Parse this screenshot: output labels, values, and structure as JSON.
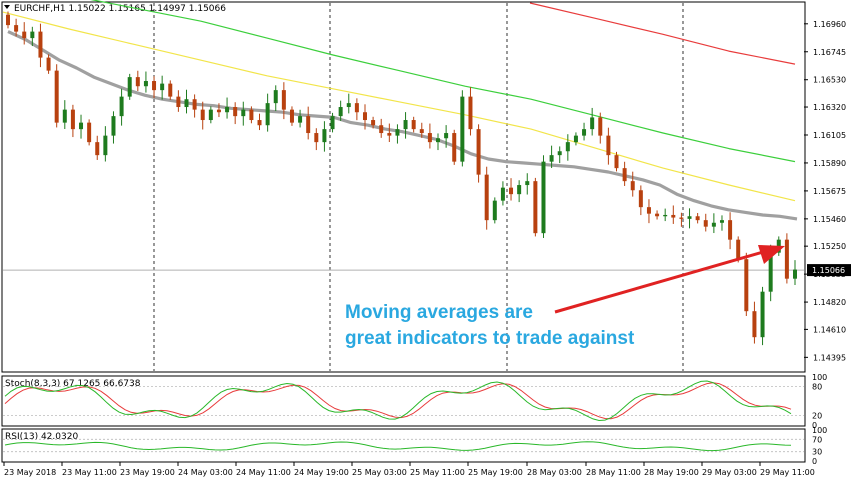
{
  "chart_data": [
    {
      "type": "candlestick",
      "title": "EURCHF,H1  1.15022 1.15165 1.14997 1.15066",
      "ylim": [
        1.1429,
        1.1712
      ],
      "y_ticks": [
        "1.16960",
        "1.16745",
        "1.16530",
        "1.16320",
        "1.16105",
        "1.15890",
        "1.15675",
        "1.15460",
        "1.15250",
        "1.15035",
        "1.14820",
        "1.14610",
        "1.14395"
      ],
      "y_tick_values": [
        1.1696,
        1.16745,
        1.1653,
        1.1632,
        1.16105,
        1.1589,
        1.15675,
        1.1546,
        1.1525,
        1.15035,
        1.1482,
        1.1461,
        1.14395
      ],
      "current_price": "1.15066",
      "current_value": 1.15066,
      "x_labels": [
        "23 May 2018",
        "23 May 11:00",
        "23 May 19:00",
        "24 May 03:00",
        "24 May 11:00",
        "24 May 19:00",
        "25 May 03:00",
        "25 May 11:00",
        "25 May 19:00",
        "28 May 03:00",
        "28 May 11:00",
        "28 May 19:00",
        "29 May 03:00",
        "29 May 11:00"
      ],
      "closes": [
        1.1695,
        1.169,
        1.1685,
        1.169,
        1.167,
        1.166,
        1.162,
        1.163,
        1.1615,
        1.162,
        1.1605,
        1.1595,
        1.161,
        1.1625,
        1.164,
        1.1655,
        1.1648,
        1.1652,
        1.1645,
        1.165,
        1.164,
        1.1632,
        1.1638,
        1.163,
        1.1622,
        1.163,
        1.1628,
        1.1632,
        1.1625,
        1.163,
        1.1622,
        1.1618,
        1.1635,
        1.1645,
        1.163,
        1.162,
        1.1625,
        1.1612,
        1.1605,
        1.1615,
        1.1625,
        1.1632,
        1.1635,
        1.1628,
        1.1622,
        1.1618,
        1.1612,
        1.161,
        1.1615,
        1.1622,
        1.1615,
        1.1612,
        1.1605,
        1.1608,
        1.1612,
        1.159,
        1.164,
        1.1615,
        1.158,
        1.1545,
        1.156,
        1.157,
        1.1565,
        1.1572,
        1.1575,
        1.1535,
        1.159,
        1.1595,
        1.1598,
        1.1605,
        1.161,
        1.1615,
        1.1624,
        1.161,
        1.1595,
        1.1585,
        1.1575,
        1.1568,
        1.1555,
        1.155,
        1.1548,
        1.1549,
        1.1547,
        1.1546,
        1.1548,
        1.1545,
        1.154,
        1.1543,
        1.1545,
        1.153,
        1.1515,
        1.1475,
        1.1455,
        1.149,
        1.152,
        1.153,
        1.15,
        1.1507
      ],
      "sma_gray": [
        1.169,
        1.1684,
        1.1676,
        1.1668,
        1.1662,
        1.1655,
        1.165,
        1.1645,
        1.1641,
        1.1638,
        1.1636,
        1.1634,
        1.1633,
        1.1631,
        1.163,
        1.1629,
        1.1628,
        1.1626,
        1.1625,
        1.1624,
        1.162,
        1.1618,
        1.1615,
        1.1613,
        1.161,
        1.1607,
        1.1602,
        1.1596,
        1.1592,
        1.159,
        1.1589,
        1.1588,
        1.1587,
        1.1586,
        1.1584,
        1.1582,
        1.1579,
        1.1576,
        1.1572,
        1.1565,
        1.156,
        1.1556,
        1.1553,
        1.1551,
        1.1549,
        1.1548,
        1.1546
      ],
      "ema_yellow": [
        1.1705,
        1.1692,
        1.168,
        1.1668,
        1.1656,
        1.1646,
        1.1636,
        1.1626,
        1.1615,
        1.16,
        1.1585,
        1.1572,
        1.156
      ],
      "ema_green": [
        1.1728,
        1.1718,
        1.1708,
        1.1698,
        1.1685,
        1.1672,
        1.166,
        1.1648,
        1.1638,
        1.1625,
        1.1612,
        1.16,
        1.159
      ],
      "ema_red": [
        1.1712,
        1.17,
        1.1688,
        1.1675,
        1.1665
      ]
    },
    {
      "type": "line",
      "title": "Stoch(8,3,3) 67.1265 66.6738",
      "ylim": [
        0,
        100
      ],
      "levels": [
        "100",
        "80",
        "20",
        "0"
      ],
      "level_values": [
        100,
        80,
        20,
        0
      ]
    },
    {
      "type": "line",
      "title": "RSI(13) 42.0320",
      "ylim": [
        0,
        100
      ],
      "levels": [
        "100",
        "70",
        "30",
        "0"
      ],
      "level_values": [
        100,
        70,
        30,
        0
      ]
    }
  ],
  "annotation": {
    "line1": "Moving averages are",
    "line2": "great indicators to trade against"
  },
  "colors": {
    "bull": "#1e7b1e",
    "bear": "#b8410f",
    "sma": "#a0a0a0",
    "ema_yellow": "#f2e54a",
    "ema_green": "#3ccf3c",
    "ema_red": "#e83c3c",
    "stoch_main": "#2ab82a",
    "stoch_signal": "#e83c3c",
    "rsi": "#2ab82a",
    "annotation": "#2aa8e0",
    "arrow": "#e02222"
  }
}
